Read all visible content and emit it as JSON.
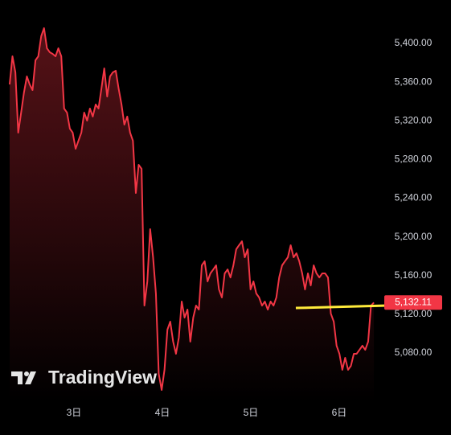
{
  "chart_data": {
    "type": "area",
    "color": "#f23645",
    "x": [
      2.273,
      2.305,
      2.338,
      2.37,
      2.403,
      2.435,
      2.468,
      2.5,
      2.532,
      2.565,
      2.597,
      2.63,
      2.662,
      2.695,
      2.727,
      2.759,
      2.792,
      2.824,
      2.857,
      2.889,
      2.922,
      2.954,
      2.986,
      3.019,
      3.051,
      3.084,
      3.116,
      3.149,
      3.181,
      3.213,
      3.246,
      3.278,
      3.311,
      3.343,
      3.376,
      3.408,
      3.44,
      3.473,
      3.505,
      3.538,
      3.57,
      3.603,
      3.635,
      3.667,
      3.7,
      3.732,
      3.765,
      3.797,
      3.83,
      3.862,
      3.895,
      3.927,
      3.959,
      3.992,
      4.024,
      4.057,
      4.089,
      4.122,
      4.154,
      4.186,
      4.219,
      4.251,
      4.284,
      4.316,
      4.349,
      4.381,
      4.413,
      4.446,
      4.478,
      4.511,
      4.543,
      4.576,
      4.608,
      4.64,
      4.673,
      4.705,
      4.738,
      4.77,
      4.803,
      4.835,
      4.867,
      4.9,
      4.932,
      4.965,
      4.997,
      5.03,
      5.062,
      5.094,
      5.127,
      5.159,
      5.192,
      5.224,
      5.257,
      5.289,
      5.321,
      5.354,
      5.386,
      5.419,
      5.451,
      5.484,
      5.516,
      5.548,
      5.581,
      5.613,
      5.646,
      5.678,
      5.711,
      5.743,
      5.775,
      5.808,
      5.84,
      5.873,
      5.905,
      5.938,
      5.97,
      6.002,
      6.035,
      6.067,
      6.1,
      6.132,
      6.165,
      6.197,
      6.229,
      6.262,
      6.294,
      6.327,
      6.359,
      6.392
    ],
    "values": [
      5357.6,
      5386.7,
      5370.1,
      5307.8,
      5328.5,
      5349.3,
      5365.9,
      5357.6,
      5351.8,
      5382.6,
      5386.7,
      5407.5,
      5415.8,
      5395.0,
      5390.9,
      5389.2,
      5386.7,
      5395.0,
      5386.7,
      5332.7,
      5328.5,
      5311.9,
      5307.8,
      5291.1,
      5299.4,
      5307.8,
      5328.5,
      5320.2,
      5332.7,
      5324.4,
      5336.9,
      5332.7,
      5353.5,
      5374.2,
      5345.1,
      5365.9,
      5370.1,
      5371.8,
      5353.5,
      5336.9,
      5316.1,
      5324.4,
      5307.8,
      5299.4,
      5245.4,
      5274.5,
      5270.4,
      5129.0,
      5154.0,
      5208.0,
      5178.9,
      5141.5,
      5058.4,
      5041.8,
      5062.6,
      5104.1,
      5112.4,
      5091.7,
      5079.2,
      5095.8,
      5133.2,
      5116.6,
      5124.9,
      5091.7,
      5116.6,
      5129.0,
      5124.9,
      5170.6,
      5174.8,
      5154.0,
      5162.3,
      5166.4,
      5170.6,
      5145.7,
      5137.4,
      5162.3,
      5166.4,
      5158.1,
      5170.6,
      5187.2,
      5191.4,
      5195.5,
      5178.9,
      5187.2,
      5145.7,
      5154.0,
      5141.5,
      5137.4,
      5129.0,
      5133.2,
      5124.9,
      5133.2,
      5129.0,
      5137.4,
      5158.1,
      5170.6,
      5174.8,
      5178.9,
      5191.4,
      5178.9,
      5183.1,
      5174.8,
      5162.3,
      5145.7,
      5162.3,
      5149.8,
      5170.6,
      5162.3,
      5158.1,
      5162.3,
      5162.3,
      5158.1,
      5120.7,
      5112.4,
      5087.5,
      5079.2,
      5062.6,
      5075.0,
      5062.6,
      5066.7,
      5079.2,
      5079.2,
      5083.3,
      5087.5,
      5083.3,
      5091.7,
      5129.0,
      5132.11
    ],
    "xlim": [
      2.164,
      6.482
    ],
    "xticks": [
      {
        "value": 3,
        "label": "3日"
      },
      {
        "value": 4,
        "label": "4日"
      },
      {
        "value": 5,
        "label": "5日"
      },
      {
        "value": 6,
        "label": "6日"
      }
    ],
    "ylim": [
      5029.3,
      5444.9
    ],
    "yticks": [
      {
        "value": 5080,
        "label": "5,080.00"
      },
      {
        "value": 5120,
        "label": "5,120.00"
      },
      {
        "value": 5160,
        "label": "5,160.00"
      },
      {
        "value": 5200,
        "label": "5,200.00"
      },
      {
        "value": 5240,
        "label": "5,240.00"
      },
      {
        "value": 5280,
        "label": "5,280.00"
      },
      {
        "value": 5320,
        "label": "5,320.00"
      },
      {
        "value": 5360,
        "label": "5,360.00"
      },
      {
        "value": 5400,
        "label": "5,400.00"
      }
    ],
    "last_price": {
      "value": 5132.11,
      "label": "5,132.11"
    },
    "trend_line": {
      "color": "#ffeb3b",
      "x": [
        5.509,
        6.545
      ],
      "y": [
        5126.5,
        5129.0
      ]
    },
    "watermark": "TradingView"
  }
}
